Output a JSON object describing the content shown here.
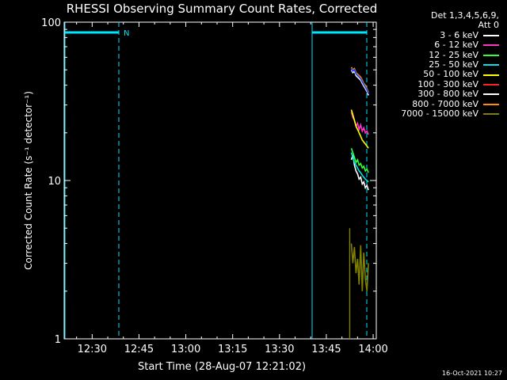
{
  "chart_data": {
    "type": "line",
    "title": "RHESSI Observing Summary Count Rates, Corrected",
    "xlabel": "Start Time (28-Aug-07 12:21:02)",
    "ylabel": "Corrected Count Rate (s⁻¹ detector⁻¹)",
    "x_tick_labels": [
      "12:30",
      "12:45",
      "13:00",
      "13:15",
      "13:30",
      "13:45",
      "14:00"
    ],
    "xlim": [
      "12:21:02",
      "14:01:00"
    ],
    "y_scale": "log",
    "ylim": [
      1,
      100
    ],
    "y_tick_labels": [
      "1",
      "10",
      "100"
    ],
    "grid": false,
    "legend_placement": "right",
    "legend_header": [
      "Det 1,3,4,5,6,9,",
      "Att 0"
    ],
    "series": [
      {
        "name": "3 - 6 keV",
        "color": "#ffffff",
        "x": [
          "13:53:00",
          "13:53:30",
          "13:54:00",
          "13:54:30",
          "13:55:00",
          "13:55:30",
          "13:56:00",
          "13:56:30",
          "13:57:00",
          "13:57:30",
          "13:58:00",
          "13:58:30"
        ],
        "y": [
          13.5,
          14.5,
          12.5,
          11.5,
          11.0,
          10.2,
          10.5,
          9.5,
          9.8,
          9.0,
          9.3,
          8.7
        ]
      },
      {
        "name": "6 - 12 keV",
        "color": "#ff33cc",
        "x": [
          "13:53:00",
          "13:53:30",
          "13:54:00",
          "13:54:30",
          "13:55:00",
          "13:55:30",
          "13:56:00",
          "13:56:30",
          "13:57:00",
          "13:57:30",
          "13:58:00",
          "13:58:30"
        ],
        "y": [
          27,
          25,
          24,
          22,
          23,
          21,
          22.5,
          20.5,
          21.5,
          20,
          20.5,
          19.5
        ]
      },
      {
        "name": "12 - 25 keV",
        "color": "#33ff33",
        "x": [
          "13:53:00",
          "13:53:30",
          "13:54:00",
          "13:54:30",
          "13:55:00",
          "13:55:30",
          "13:56:00",
          "13:56:30",
          "13:57:00",
          "13:57:30",
          "13:58:00",
          "13:58:30"
        ],
        "y": [
          16,
          15,
          14,
          13,
          13.5,
          12.5,
          12.8,
          12,
          12.3,
          11.5,
          11.8,
          11.2
        ]
      },
      {
        "name": "25 - 50 keV",
        "color": "#00e5e5",
        "x": [
          "13:53:00",
          "13:53:30",
          "13:54:00",
          "13:54:30",
          "13:55:00",
          "13:55:30",
          "13:56:00",
          "13:56:30",
          "13:57:00",
          "13:57:30",
          "13:58:00",
          "13:58:30"
        ],
        "y": [
          15,
          14,
          13,
          12.5,
          12,
          11.5,
          11.2,
          10.8,
          10.5,
          10.2,
          10.0,
          9.8
        ]
      },
      {
        "name": "50 - 100 keV",
        "color": "#ffff00",
        "x": [
          "13:53:00",
          "13:53:30",
          "13:54:00",
          "13:54:30",
          "13:55:00",
          "13:55:30",
          "13:56:00",
          "13:56:30",
          "13:57:00",
          "13:57:30",
          "13:58:00",
          "13:58:30"
        ],
        "y": [
          28,
          26,
          24,
          22,
          21,
          20,
          19,
          18,
          17.5,
          17,
          16.5,
          16
        ]
      },
      {
        "name": "100 - 300 keV",
        "color": "#ff2222",
        "x": [
          "13:53:00",
          "13:53:30",
          "13:54:00",
          "13:54:30",
          "13:55:00",
          "13:55:30",
          "13:56:00",
          "13:56:30",
          "13:57:00",
          "13:57:30",
          "13:58:00",
          "13:58:30"
        ],
        "y": [
          51,
          49,
          50,
          47,
          46,
          45,
          44,
          42,
          40,
          39,
          37,
          35
        ]
      },
      {
        "name": "300 - 800 keV",
        "color": "#ffffff",
        "x": [
          "13:53:00",
          "13:53:30",
          "13:54:00",
          "13:54:30",
          "13:55:00",
          "13:55:30",
          "13:56:00",
          "13:56:30",
          "13:57:00",
          "13:57:30",
          "13:58:00",
          "13:58:30"
        ],
        "y": [
          50,
          48,
          49,
          46,
          45,
          44,
          43,
          41,
          39.5,
          38,
          36.5,
          34.5
        ]
      },
      {
        "name": "800 - 7000 keV",
        "color": "#ff8c00",
        "x": [
          "13:53:00",
          "13:53:30",
          "13:54:00",
          "13:54:30",
          "13:55:00",
          "13:55:30",
          "13:56:00",
          "13:56:30",
          "13:57:00",
          "13:57:30",
          "13:58:00",
          "13:58:30"
        ],
        "y": [
          52,
          50,
          51,
          48,
          47,
          46,
          45,
          43,
          41,
          40,
          38,
          36
        ]
      },
      {
        "name": "7000 - 15000 keV",
        "color": "#808000",
        "x": [
          "13:53:00",
          "13:53:30",
          "13:54:00",
          "13:54:30",
          "13:55:00",
          "13:55:30",
          "13:56:00",
          "13:56:30",
          "13:57:00",
          "13:57:30",
          "13:58:00",
          "13:58:30"
        ],
        "y": [
          4.0,
          3.0,
          3.8,
          2.6,
          3.2,
          2.2,
          3.9,
          2.0,
          3.5,
          2.4,
          2.0,
          3.0
        ]
      }
    ],
    "extra_lines": {
      "blue_series_color": "#1a3cff",
      "orbit_marker_label": "N",
      "marker_color": "#00e5ff"
    }
  },
  "footer": {
    "date": "16-Oct-2021 10:27"
  }
}
